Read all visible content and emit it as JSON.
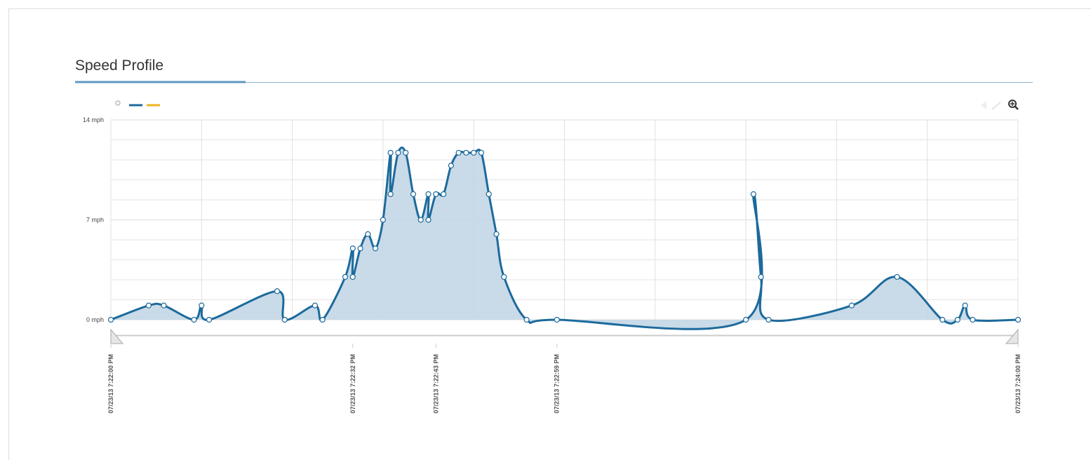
{
  "chart_data": {
    "type": "area",
    "title": "Speed Profile",
    "x": [
      "2013-07-23T19:22:00",
      "2013-07-23T19:22:05",
      "2013-07-23T19:22:07",
      "2013-07-23T19:22:11",
      "2013-07-23T19:22:12",
      "2013-07-23T19:22:13",
      "2013-07-23T19:22:22",
      "2013-07-23T19:22:23",
      "2013-07-23T19:22:27",
      "2013-07-23T19:22:28",
      "2013-07-23T19:22:31",
      "2013-07-23T19:22:32",
      "2013-07-23T19:22:32",
      "2013-07-23T19:22:33",
      "2013-07-23T19:22:34",
      "2013-07-23T19:22:35",
      "2013-07-23T19:22:36",
      "2013-07-23T19:22:37",
      "2013-07-23T19:22:37",
      "2013-07-23T19:22:38",
      "2013-07-23T19:22:39",
      "2013-07-23T19:22:40",
      "2013-07-23T19:22:41",
      "2013-07-23T19:22:42",
      "2013-07-23T19:22:42",
      "2013-07-23T19:22:43",
      "2013-07-23T19:22:44",
      "2013-07-23T19:22:45",
      "2013-07-23T19:22:46",
      "2013-07-23T19:22:47",
      "2013-07-23T19:22:48",
      "2013-07-23T19:22:49",
      "2013-07-23T19:22:50",
      "2013-07-23T19:22:51",
      "2013-07-23T19:22:52",
      "2013-07-23T19:22:55",
      "2013-07-23T19:22:59",
      "2013-07-23T19:23:24",
      "2013-07-23T19:23:25",
      "2013-07-23T19:23:26",
      "2013-07-23T19:23:27",
      "2013-07-23T19:23:38",
      "2013-07-23T19:23:44",
      "2013-07-23T19:23:50",
      "2013-07-23T19:23:52",
      "2013-07-23T19:23:53",
      "2013-07-23T19:23:54",
      "2013-07-23T19:24:00"
    ],
    "series": [
      {
        "color": "#1c6a9c",
        "fill": "#c3d6e6",
        "values": [
          0,
          1,
          1,
          0,
          1,
          0,
          2,
          0,
          1,
          0,
          3,
          5,
          3,
          5,
          6,
          5,
          7,
          11.7,
          8.8,
          11.7,
          11.7,
          8.8,
          7,
          8.8,
          7,
          8.8,
          8.8,
          10.8,
          11.7,
          11.7,
          11.7,
          11.7,
          8.8,
          6,
          3,
          0,
          0,
          0,
          8.8,
          3,
          0,
          1,
          3,
          0,
          0,
          1,
          0,
          0
        ]
      }
    ],
    "xlim": [
      "2013-07-23T19:22:00",
      "2013-07-23T19:24:00"
    ],
    "xticks": [
      {
        "value": "2013-07-23T19:22:00",
        "label": "07/23/13 7:22:00 PM"
      },
      {
        "value": "2013-07-23T19:22:32",
        "label": "07/23/13 7:22:32 PM"
      },
      {
        "value": "2013-07-23T19:22:43",
        "label": "07/23/13 7:22:43 PM"
      },
      {
        "value": "2013-07-23T19:22:59",
        "label": "07/23/13 7:22:59 PM"
      },
      {
        "value": "2013-07-23T19:24:00",
        "label": "07/23/13 7:24:00 PM"
      }
    ],
    "xgrid": [
      "2013-07-23T19:22:00",
      "2013-07-23T19:22:12",
      "2013-07-23T19:22:24",
      "2013-07-23T19:22:36",
      "2013-07-23T19:22:48",
      "2013-07-23T19:23:00",
      "2013-07-23T19:23:12",
      "2013-07-23T19:23:24",
      "2013-07-23T19:23:36",
      "2013-07-23T19:23:48",
      "2013-07-23T19:24:00"
    ],
    "ylim": [
      0,
      14
    ],
    "yticks": [
      {
        "value": 0,
        "label": "0 mph"
      },
      {
        "value": 7,
        "label": "7 mph"
      },
      {
        "value": 14,
        "label": "14 mph"
      }
    ],
    "ygrid": [
      1.4,
      2.8,
      4.2,
      5.6,
      8.4,
      9.8,
      11.2,
      12.6
    ],
    "grid": true
  }
}
